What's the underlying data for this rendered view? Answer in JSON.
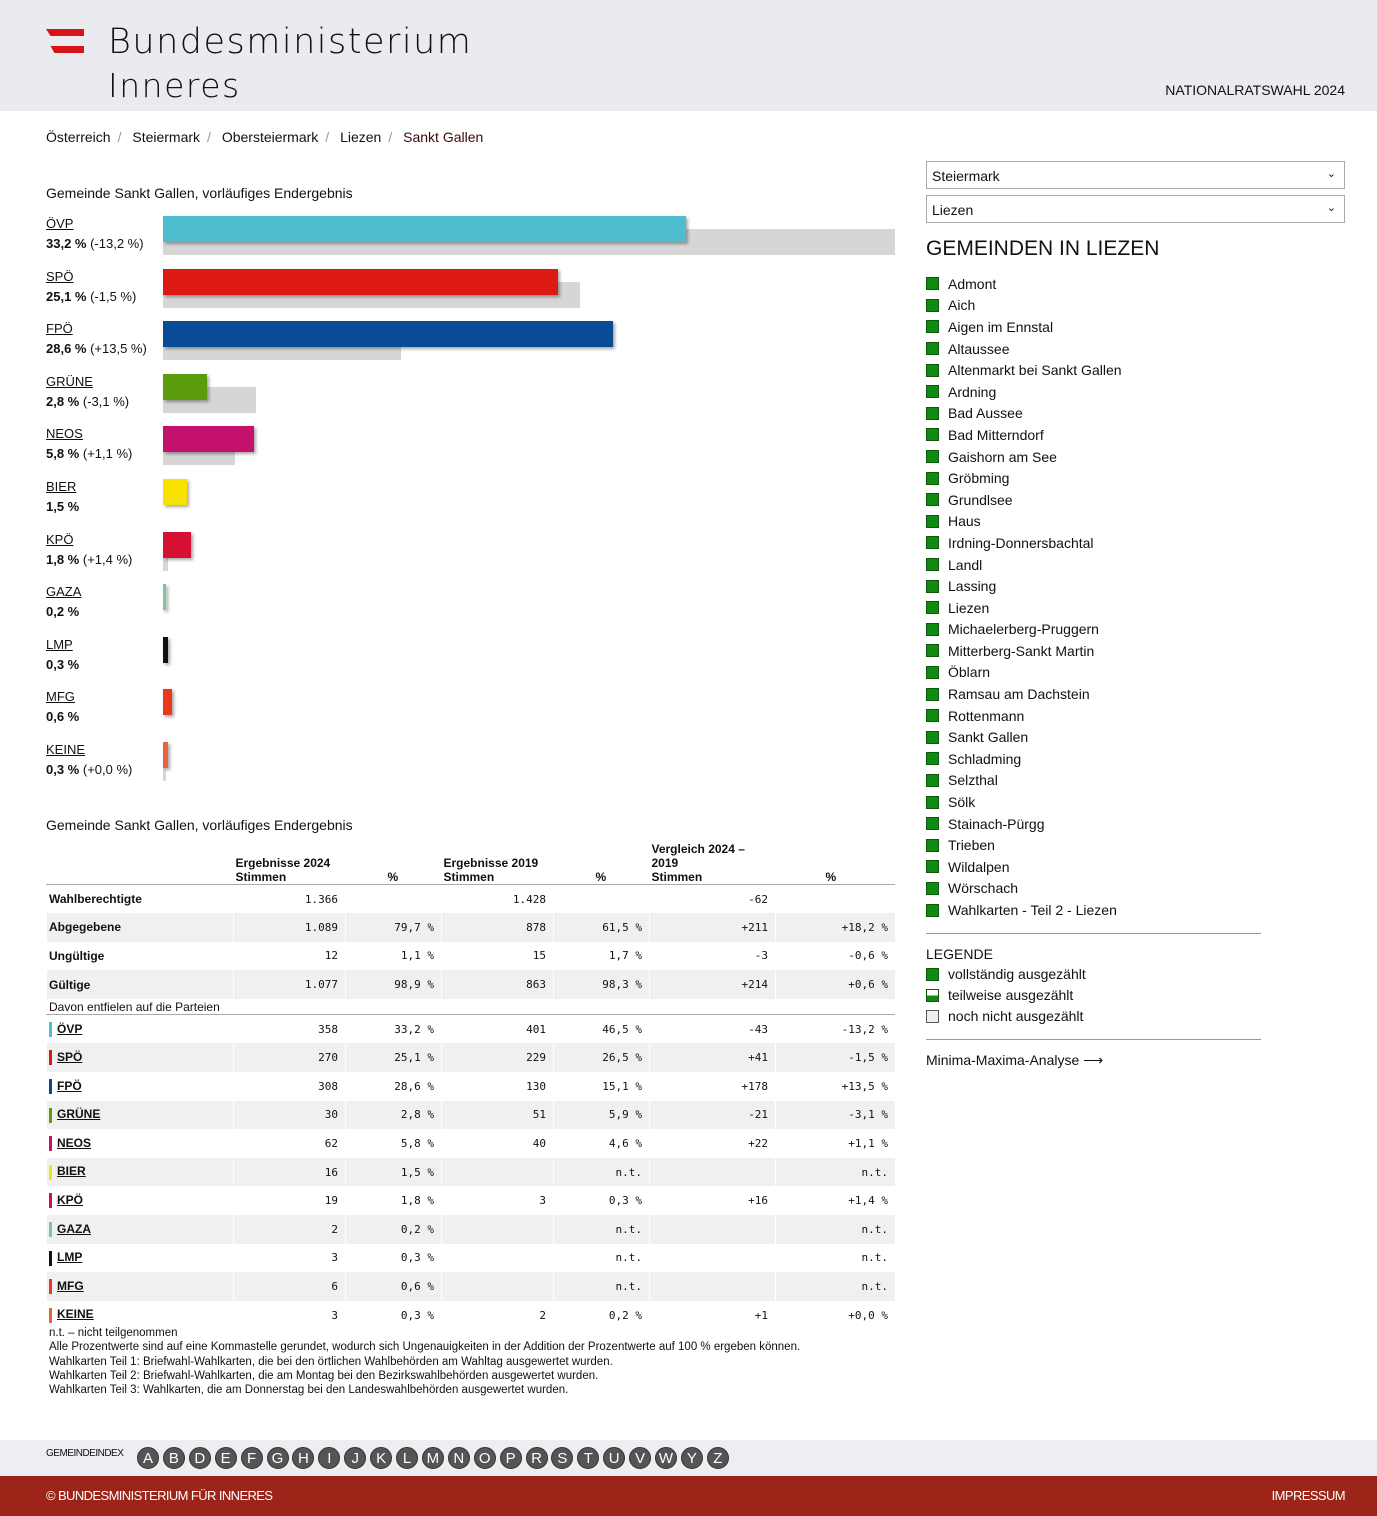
{
  "header": {
    "brand_line1": "Bundesministerium",
    "brand_line2": "Inneres",
    "election": "NATIONALRATSWAHL 2024"
  },
  "breadcrumb": [
    "Österreich",
    "Steiermark",
    "Obersteiermark",
    "Liezen",
    "Sankt Gallen"
  ],
  "chart_title": "Gemeinde Sankt Gallen, vorläufiges Endergebnis",
  "chart_data": {
    "type": "bar",
    "title": "Gemeinde Sankt Gallen, vorläufiges Endergebnis",
    "xlim": [
      0,
      46.5
    ],
    "categories": [
      "ÖVP",
      "SPÖ",
      "FPÖ",
      "GRÜNE",
      "NEOS",
      "BIER",
      "KPÖ",
      "GAZA",
      "LMP",
      "MFG",
      "KEINE"
    ],
    "series": [
      {
        "name": "2024",
        "values": [
          33.2,
          25.1,
          28.6,
          2.8,
          5.8,
          1.5,
          1.8,
          0.2,
          0.3,
          0.6,
          0.3
        ]
      },
      {
        "name": "2019",
        "values": [
          46.5,
          26.5,
          15.1,
          5.9,
          4.6,
          null,
          0.3,
          null,
          null,
          null,
          0.2
        ]
      }
    ],
    "labels": [
      "33,2 %",
      "25,1 %",
      "28,6 %",
      "2,8 %",
      "5,8 %",
      "1,5 %",
      "1,8 %",
      "0,2 %",
      "0,3 %",
      "0,6 %",
      "0,3 %"
    ],
    "diffs": [
      "(-13,2 %)",
      "(-1,5 %)",
      "(+13,5 %)",
      "(-3,1 %)",
      "(+1,1 %)",
      "",
      "(+1,4 %)",
      "",
      "",
      "",
      "(+0,0 %)"
    ],
    "colors": [
      "#4fbdd0",
      "#dc1a12",
      "#0a4b98",
      "#5c9a0e",
      "#c4126c",
      "#f7e200",
      "#d70f33",
      "#7cc79b",
      "#111111",
      "#e8391c",
      "#ea6040"
    ]
  },
  "table": {
    "title": "Gemeinde Sankt Gallen, vorläufiges Endergebnis",
    "groups": [
      "Ergebnisse 2024",
      "Ergebnisse 2019",
      "Vergleich 2024 – 2019"
    ],
    "sub_votes": "Stimmen",
    "sub_pct": "%",
    "rows": [
      [
        "Wahlberechtigte",
        "1.366",
        "",
        "1.428",
        "",
        "-62",
        ""
      ],
      [
        "Abgegebene",
        "1.089",
        "79,7 %",
        "878",
        "61,5 %",
        "+211",
        "+18,2 %"
      ],
      [
        "Ungültige",
        "12",
        "1,1 %",
        "15",
        "1,7 %",
        "-3",
        "-0,6 %"
      ],
      [
        "Gültige",
        "1.077",
        "98,9 %",
        "863",
        "98,3 %",
        "+214",
        "+0,6 %"
      ]
    ],
    "subheader": "Davon entfielen auf die Parteien",
    "party_rows": [
      [
        "ÖVP",
        "358",
        "33,2 %",
        "401",
        "46,5 %",
        "-43",
        "-13,2 %"
      ],
      [
        "SPÖ",
        "270",
        "25,1 %",
        "229",
        "26,5 %",
        "+41",
        "-1,5 %"
      ],
      [
        "FPÖ",
        "308",
        "28,6 %",
        "130",
        "15,1 %",
        "+178",
        "+13,5 %"
      ],
      [
        "GRÜNE",
        "30",
        "2,8 %",
        "51",
        "5,9 %",
        "-21",
        "-3,1 %"
      ],
      [
        "NEOS",
        "62",
        "5,8 %",
        "40",
        "4,6 %",
        "+22",
        "+1,1 %"
      ],
      [
        "BIER",
        "16",
        "1,5 %",
        "",
        "n.t.",
        "",
        "n.t."
      ],
      [
        "KPÖ",
        "19",
        "1,8 %",
        "3",
        "0,3 %",
        "+16",
        "+1,4 %"
      ],
      [
        "GAZA",
        "2",
        "0,2 %",
        "",
        "n.t.",
        "",
        "n.t."
      ],
      [
        "LMP",
        "3",
        "0,3 %",
        "",
        "n.t.",
        "",
        "n.t."
      ],
      [
        "MFG",
        "6",
        "0,6 %",
        "",
        "n.t.",
        "",
        "n.t."
      ],
      [
        "KEINE",
        "3",
        "0,3 %",
        "2",
        "0,2 %",
        "+1",
        "+0,0 %"
      ]
    ]
  },
  "notes": [
    "n.t. – nicht teilgenommen",
    "Alle Prozentwerte sind auf eine Kommastelle gerundet, wodurch sich Ungenauigkeiten in der Addition der Prozentwerte auf 100 % ergeben können.",
    "Wahlkarten Teil 1: Briefwahl-Wahlkarten, die bei den örtlichen Wahlbehörden am Wahltag ausgewertet wurden.",
    "Wahlkarten Teil 2: Briefwahl-Wahlkarten, die am Montag bei den Bezirkswahlbehörden ausgewertet wurden.",
    "Wahlkarten Teil 3: Wahlkarten, die am Donnerstag bei den Landeswahlbehörden ausgewertet wurden."
  ],
  "sidebar": {
    "select_state": "Steiermark",
    "select_district": "Liezen",
    "heading": "GEMEINDEN IN LIEZEN",
    "gemeinden": [
      "Admont",
      "Aich",
      "Aigen im Ennstal",
      "Altaussee",
      "Altenmarkt bei Sankt Gallen",
      "Ardning",
      "Bad Aussee",
      "Bad Mitterndorf",
      "Gaishorn am See",
      "Gröbming",
      "Grundlsee",
      "Haus",
      "Irdning-Donnersbachtal",
      "Landl",
      "Lassing",
      "Liezen",
      "Michaelerberg-Pruggern",
      "Mitterberg-Sankt Martin",
      "Öblarn",
      "Ramsau am Dachstein",
      "Rottenmann",
      "Sankt Gallen",
      "Schladming",
      "Selzthal",
      "Sölk",
      "Stainach-Pürgg",
      "Trieben",
      "Wildalpen",
      "Wörschach",
      "Wahlkarten - Teil 2 - Liezen"
    ],
    "legend_title": "LEGENDE",
    "legend": [
      "vollständig ausgezählt",
      "teilweise ausgezählt",
      "noch nicht ausgezählt"
    ],
    "analysis_link": "Minima-Maxima-Analyse"
  },
  "index": {
    "label": "GEMEINDEINDEX",
    "letters": [
      "A",
      "B",
      "D",
      "E",
      "F",
      "G",
      "H",
      "I",
      "J",
      "K",
      "L",
      "M",
      "N",
      "O",
      "P",
      "R",
      "S",
      "T",
      "U",
      "V",
      "W",
      "Y",
      "Z"
    ]
  },
  "footer": {
    "copyright": "© BUNDESMINISTERIUM FÜR INNERES",
    "imprint": "IMPRESSUM"
  }
}
